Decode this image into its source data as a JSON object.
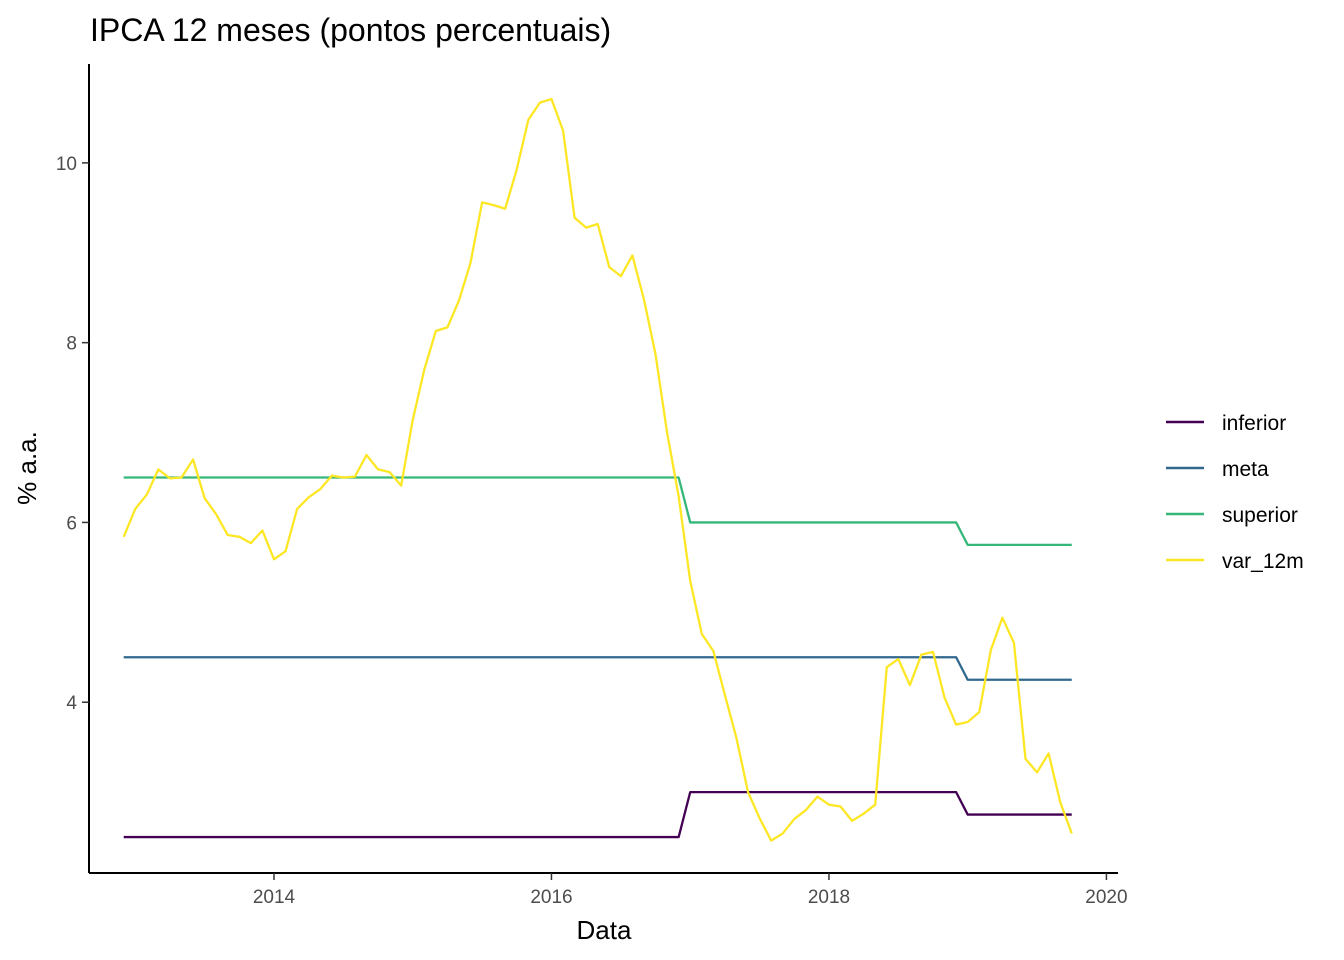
{
  "chart_data": {
    "type": "line",
    "title": "IPCA 12 meses (pontos percentuais)",
    "xlabel": "Data",
    "ylabel": "% a.a.",
    "x_ticks": [
      "2014",
      "2016",
      "2018",
      "2020"
    ],
    "y_ticks": [
      "4",
      "6",
      "8",
      "10"
    ],
    "xlim": [
      "2012-09-01",
      "2020-02-01"
    ],
    "ylim": [
      2.1,
      11.1
    ],
    "grid": false,
    "legend_position": "right",
    "x": [
      "2012-12",
      "2013-01",
      "2013-02",
      "2013-03",
      "2013-04",
      "2013-05",
      "2013-06",
      "2013-07",
      "2013-08",
      "2013-09",
      "2013-10",
      "2013-11",
      "2013-12",
      "2014-01",
      "2014-02",
      "2014-03",
      "2014-04",
      "2014-05",
      "2014-06",
      "2014-07",
      "2014-08",
      "2014-09",
      "2014-10",
      "2014-11",
      "2014-12",
      "2015-01",
      "2015-02",
      "2015-03",
      "2015-04",
      "2015-05",
      "2015-06",
      "2015-07",
      "2015-08",
      "2015-09",
      "2015-10",
      "2015-11",
      "2015-12",
      "2016-01",
      "2016-02",
      "2016-03",
      "2016-04",
      "2016-05",
      "2016-06",
      "2016-07",
      "2016-08",
      "2016-09",
      "2016-10",
      "2016-11",
      "2016-12",
      "2017-01",
      "2017-02",
      "2017-03",
      "2017-04",
      "2017-05",
      "2017-06",
      "2017-07",
      "2017-08",
      "2017-09",
      "2017-10",
      "2017-11",
      "2017-12",
      "2018-01",
      "2018-02",
      "2018-03",
      "2018-04",
      "2018-05",
      "2018-06",
      "2018-07",
      "2018-08",
      "2018-09",
      "2018-10",
      "2018-11",
      "2018-12",
      "2019-01",
      "2019-02",
      "2019-03",
      "2019-04",
      "2019-05",
      "2019-06",
      "2019-07",
      "2019-08",
      "2019-09",
      "2019-10"
    ],
    "series": [
      {
        "name": "inferior",
        "color": "#440154",
        "values": [
          2.5,
          2.5,
          2.5,
          2.5,
          2.5,
          2.5,
          2.5,
          2.5,
          2.5,
          2.5,
          2.5,
          2.5,
          2.5,
          2.5,
          2.5,
          2.5,
          2.5,
          2.5,
          2.5,
          2.5,
          2.5,
          2.5,
          2.5,
          2.5,
          2.5,
          2.5,
          2.5,
          2.5,
          2.5,
          2.5,
          2.5,
          2.5,
          2.5,
          2.5,
          2.5,
          2.5,
          2.5,
          2.5,
          2.5,
          2.5,
          2.5,
          2.5,
          2.5,
          2.5,
          2.5,
          2.5,
          2.5,
          2.5,
          2.5,
          3.0,
          3.0,
          3.0,
          3.0,
          3.0,
          3.0,
          3.0,
          3.0,
          3.0,
          3.0,
          3.0,
          3.0,
          3.0,
          3.0,
          3.0,
          3.0,
          3.0,
          3.0,
          3.0,
          3.0,
          3.0,
          3.0,
          3.0,
          3.0,
          2.75,
          2.75,
          2.75,
          2.75,
          2.75,
          2.75,
          2.75,
          2.75,
          2.75,
          2.75
        ]
      },
      {
        "name": "meta",
        "color": "#31688e",
        "values": [
          4.5,
          4.5,
          4.5,
          4.5,
          4.5,
          4.5,
          4.5,
          4.5,
          4.5,
          4.5,
          4.5,
          4.5,
          4.5,
          4.5,
          4.5,
          4.5,
          4.5,
          4.5,
          4.5,
          4.5,
          4.5,
          4.5,
          4.5,
          4.5,
          4.5,
          4.5,
          4.5,
          4.5,
          4.5,
          4.5,
          4.5,
          4.5,
          4.5,
          4.5,
          4.5,
          4.5,
          4.5,
          4.5,
          4.5,
          4.5,
          4.5,
          4.5,
          4.5,
          4.5,
          4.5,
          4.5,
          4.5,
          4.5,
          4.5,
          4.5,
          4.5,
          4.5,
          4.5,
          4.5,
          4.5,
          4.5,
          4.5,
          4.5,
          4.5,
          4.5,
          4.5,
          4.5,
          4.5,
          4.5,
          4.5,
          4.5,
          4.5,
          4.5,
          4.5,
          4.5,
          4.5,
          4.5,
          4.5,
          4.25,
          4.25,
          4.25,
          4.25,
          4.25,
          4.25,
          4.25,
          4.25,
          4.25,
          4.25
        ]
      },
      {
        "name": "superior",
        "color": "#35b779",
        "values": [
          6.5,
          6.5,
          6.5,
          6.5,
          6.5,
          6.5,
          6.5,
          6.5,
          6.5,
          6.5,
          6.5,
          6.5,
          6.5,
          6.5,
          6.5,
          6.5,
          6.5,
          6.5,
          6.5,
          6.5,
          6.5,
          6.5,
          6.5,
          6.5,
          6.5,
          6.5,
          6.5,
          6.5,
          6.5,
          6.5,
          6.5,
          6.5,
          6.5,
          6.5,
          6.5,
          6.5,
          6.5,
          6.5,
          6.5,
          6.5,
          6.5,
          6.5,
          6.5,
          6.5,
          6.5,
          6.5,
          6.5,
          6.5,
          6.5,
          6.0,
          6.0,
          6.0,
          6.0,
          6.0,
          6.0,
          6.0,
          6.0,
          6.0,
          6.0,
          6.0,
          6.0,
          6.0,
          6.0,
          6.0,
          6.0,
          6.0,
          6.0,
          6.0,
          6.0,
          6.0,
          6.0,
          6.0,
          6.0,
          5.75,
          5.75,
          5.75,
          5.75,
          5.75,
          5.75,
          5.75,
          5.75,
          5.75,
          5.75
        ]
      },
      {
        "name": "var_12m",
        "color": "#fde725",
        "values": [
          5.84,
          6.15,
          6.31,
          6.59,
          6.49,
          6.5,
          6.7,
          6.27,
          6.09,
          5.86,
          5.84,
          5.77,
          5.91,
          5.59,
          5.68,
          6.15,
          6.28,
          6.37,
          6.52,
          6.5,
          6.51,
          6.75,
          6.59,
          6.56,
          6.41,
          7.14,
          7.7,
          8.13,
          8.17,
          8.47,
          8.89,
          9.56,
          9.53,
          9.49,
          9.93,
          10.48,
          10.67,
          10.71,
          10.36,
          9.39,
          9.28,
          9.32,
          8.84,
          8.74,
          8.97,
          8.48,
          7.87,
          7.0,
          6.29,
          5.35,
          4.76,
          4.57,
          4.08,
          3.6,
          3.0,
          2.71,
          2.46,
          2.54,
          2.7,
          2.8,
          2.95,
          2.86,
          2.84,
          2.68,
          2.76,
          2.86,
          4.39,
          4.48,
          4.19,
          4.53,
          4.56,
          4.05,
          3.75,
          3.78,
          3.89,
          4.58,
          4.94,
          4.66,
          3.37,
          3.22,
          3.43,
          2.89,
          2.54
        ]
      }
    ]
  }
}
